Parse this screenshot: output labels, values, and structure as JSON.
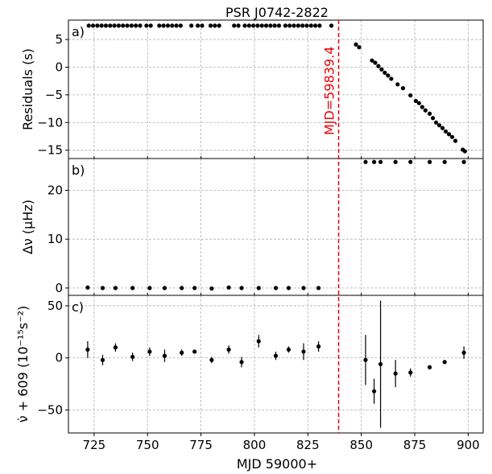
{
  "chart_data": {
    "type": "scatter",
    "title": "PSR J0742-2822",
    "xlabel": "MJD 59000+",
    "xlim": [
      713,
      907
    ],
    "xticks": [
      725,
      750,
      775,
      800,
      825,
      850,
      875,
      900
    ],
    "grid": true,
    "glitch": {
      "x": 839.4,
      "label": "MJD=59839.4",
      "color": "#e8000b"
    },
    "marker_color": "#000000",
    "panels": [
      {
        "id": "a",
        "panel_label": "a)",
        "ylabel": "Residuals (s)",
        "ylim": [
          -16.5,
          8.5
        ],
        "yticks": [
          5,
          0,
          -5,
          -10,
          -15
        ],
        "ytick_labels": [
          "5",
          "0",
          "−5",
          "−10",
          "−15"
        ],
        "points": [
          [
            722.5,
            7.5
          ],
          [
            724.5,
            7.5
          ],
          [
            726.5,
            7.5
          ],
          [
            728.5,
            7.5
          ],
          [
            730.5,
            7.5
          ],
          [
            732.5,
            7.5
          ],
          [
            734.5,
            7.5
          ],
          [
            736.5,
            7.5
          ],
          [
            738.5,
            7.5
          ],
          [
            740.5,
            7.5
          ],
          [
            742.5,
            7.5
          ],
          [
            744.5,
            7.5
          ],
          [
            746.5,
            7.5
          ],
          [
            749.5,
            7.5
          ],
          [
            751.5,
            7.5
          ],
          [
            755.5,
            7.5
          ],
          [
            757.5,
            7.5
          ],
          [
            759.5,
            7.5
          ],
          [
            761.5,
            7.5
          ],
          [
            763.5,
            7.5
          ],
          [
            765.5,
            7.5
          ],
          [
            770.5,
            7.5
          ],
          [
            773.5,
            7.5
          ],
          [
            775.5,
            7.5
          ],
          [
            779.5,
            7.5
          ],
          [
            781.5,
            7.5
          ],
          [
            783.5,
            7.5
          ],
          [
            790.5,
            7.5
          ],
          [
            792.5,
            7.5
          ],
          [
            795.5,
            7.5
          ],
          [
            797.5,
            7.5
          ],
          [
            799.5,
            7.5
          ],
          [
            801.5,
            7.5
          ],
          [
            803.5,
            7.5
          ],
          [
            805.5,
            7.5
          ],
          [
            807.5,
            7.5
          ],
          [
            809.5,
            7.5
          ],
          [
            811.5,
            7.5
          ],
          [
            814.5,
            7.5
          ],
          [
            816.5,
            7.5
          ],
          [
            818.5,
            7.5
          ],
          [
            820.5,
            7.5
          ],
          [
            822.5,
            7.5
          ],
          [
            824.5,
            7.5
          ],
          [
            826.5,
            7.5
          ],
          [
            828.5,
            7.5
          ],
          [
            830.5,
            7.5
          ],
          [
            836.0,
            7.5
          ],
          [
            847.5,
            4.1
          ],
          [
            849.0,
            3.6
          ],
          [
            855.0,
            1.2
          ],
          [
            856.5,
            0.8
          ],
          [
            858.0,
            0.2
          ],
          [
            859.5,
            -0.4
          ],
          [
            861.0,
            -1.0
          ],
          [
            862.5,
            -1.5
          ],
          [
            864.0,
            -2.1
          ],
          [
            867.0,
            -3.1
          ],
          [
            869.5,
            -3.8
          ],
          [
            873.0,
            -5.1
          ],
          [
            875.5,
            -6.1
          ],
          [
            877.0,
            -6.5
          ],
          [
            878.5,
            -7.2
          ],
          [
            880.0,
            -7.8
          ],
          [
            882.0,
            -8.4
          ],
          [
            883.5,
            -9.2
          ],
          [
            885.0,
            -10.0
          ],
          [
            886.5,
            -10.5
          ],
          [
            888.0,
            -11.0
          ],
          [
            889.5,
            -11.6
          ],
          [
            891.0,
            -12.1
          ],
          [
            892.5,
            -12.6
          ],
          [
            894.0,
            -13.3
          ],
          [
            897.5,
            -14.9
          ],
          [
            898.5,
            -15.2
          ]
        ]
      },
      {
        "id": "b",
        "panel_label": "b)",
        "ylabel": "Δν (μHz)",
        "ylim": [
          -1.5,
          26.5
        ],
        "yticks": [
          20,
          10,
          0
        ],
        "ytick_labels": [
          "20",
          "10",
          "0"
        ],
        "points": [
          [
            722,
            0.1
          ],
          [
            729,
            0
          ],
          [
            735,
            0
          ],
          [
            743,
            0
          ],
          [
            751,
            0
          ],
          [
            758,
            0
          ],
          [
            766,
            0
          ],
          [
            772,
            0
          ],
          [
            780,
            -0.1
          ],
          [
            788,
            0.1
          ],
          [
            794,
            0
          ],
          [
            802,
            0
          ],
          [
            810,
            0
          ],
          [
            816,
            0
          ],
          [
            823,
            0
          ],
          [
            830,
            0
          ],
          [
            852,
            25.8
          ],
          [
            856,
            25.8
          ],
          [
            859,
            25.8
          ],
          [
            866,
            25.8
          ],
          [
            873,
            25.8
          ],
          [
            882,
            25.8
          ],
          [
            889,
            25.8
          ],
          [
            898,
            25.8
          ]
        ]
      },
      {
        "id": "c",
        "panel_label": "c)",
        "ylabel": "ν̇ + 609 (10⁻¹⁵s⁻²)",
        "ylim": [
          -72,
          60
        ],
        "yticks": [
          50,
          0,
          -50
        ],
        "ytick_labels": [
          "50",
          "0",
          "−50"
        ],
        "points": [
          [
            722,
            8,
            8
          ],
          [
            729,
            -2,
            5
          ],
          [
            735,
            10,
            4
          ],
          [
            743,
            1,
            4
          ],
          [
            751,
            6,
            4
          ],
          [
            758,
            2,
            6
          ],
          [
            766,
            5,
            3
          ],
          [
            772,
            6,
            2
          ],
          [
            780,
            -2,
            3
          ],
          [
            788,
            8,
            4
          ],
          [
            794,
            -4,
            5
          ],
          [
            802,
            16,
            6
          ],
          [
            810,
            2,
            4
          ],
          [
            816,
            8,
            3
          ],
          [
            823,
            6,
            8
          ],
          [
            830,
            11,
            5
          ],
          [
            852,
            -2,
            24
          ],
          [
            856,
            -32,
            12
          ],
          [
            859,
            -6,
            61
          ],
          [
            866,
            -15,
            13
          ],
          [
            873,
            -14,
            4
          ],
          [
            882,
            -9,
            2
          ],
          [
            889,
            -4,
            2
          ],
          [
            898,
            5,
            6
          ]
        ]
      }
    ]
  }
}
